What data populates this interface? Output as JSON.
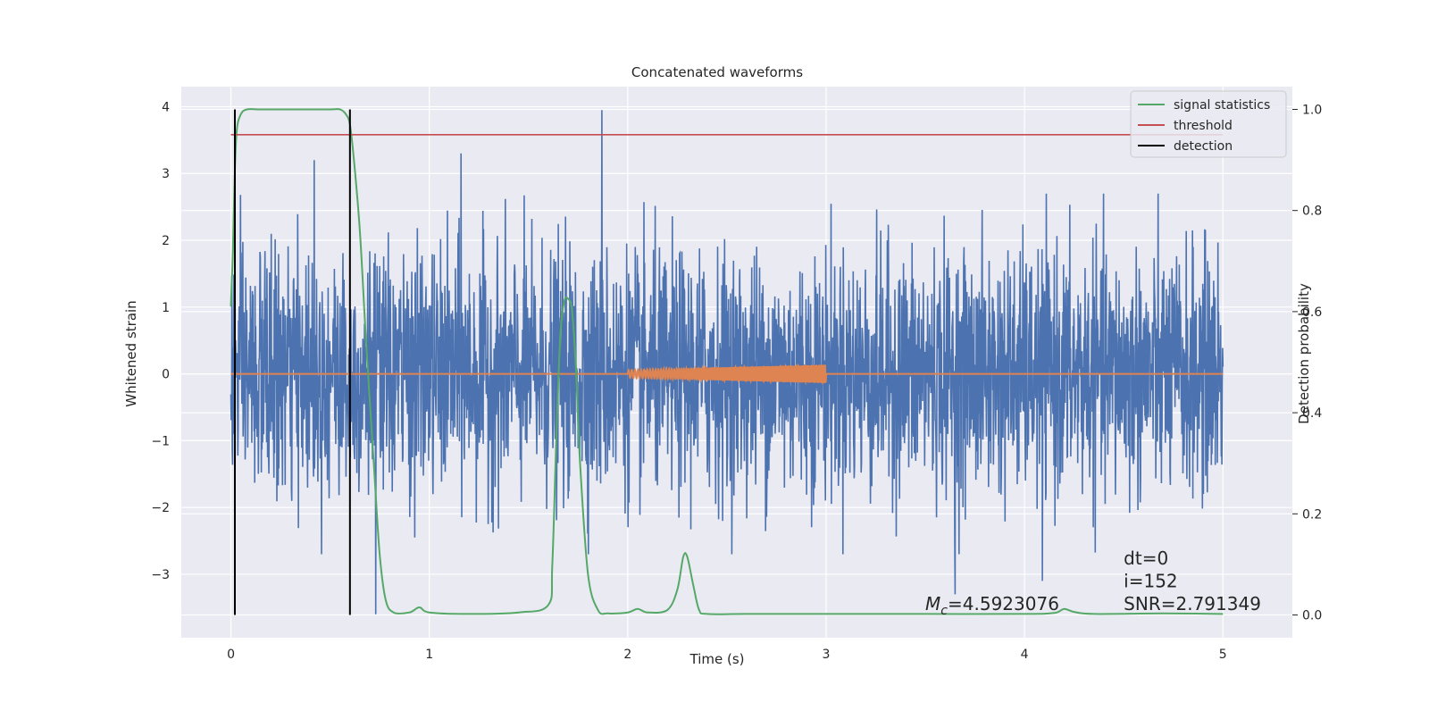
{
  "chart_data": {
    "type": "line",
    "title": "Concatenated waveforms",
    "xlabel": "Time (s)",
    "ylabel": "Whitened strain",
    "y2label": "Detection probability",
    "xlim": [
      -0.25,
      5.35
    ],
    "ylim": [
      -3.95,
      4.3
    ],
    "y2lim": [
      -0.045,
      1.045
    ],
    "xticks": [
      0,
      1,
      2,
      3,
      4,
      5
    ],
    "xtick_labels": [
      "0",
      "1",
      "2",
      "3",
      "4",
      "5"
    ],
    "yticks": [
      4,
      3,
      2,
      1,
      0,
      -1,
      -2,
      -3
    ],
    "ytick_labels": [
      "4",
      "3",
      "2",
      "1",
      "0",
      "−1",
      "−2",
      "−3"
    ],
    "y2ticks": [
      1.0,
      0.8,
      0.6,
      0.4,
      0.2,
      0.0
    ],
    "y2tick_labels": [
      "1.0",
      "0.8",
      "0.6",
      "0.4",
      "0.2",
      "0.0"
    ],
    "grid": true,
    "legend_position": "upper-right",
    "legend": [
      {
        "label": "signal statistics",
        "color": "#55a868"
      },
      {
        "label": "threshold",
        "color": "#c44e52"
      },
      {
        "label": "detection",
        "color": "#000000"
      }
    ],
    "colors": {
      "background": "#eaeaf2",
      "grid": "#ffffff",
      "noise": "#4c72b0",
      "waveform": "#dd8452",
      "signal_statistics": "#55a868",
      "threshold": "#c44e52",
      "detection": "#000000"
    },
    "noise": {
      "x_range": [
        0,
        5
      ],
      "typical_abs_max": 2.4,
      "notable_peaks": [
        {
          "x": 1.87,
          "y": 3.95
        },
        {
          "x": 0.73,
          "y": -3.6
        },
        {
          "x": 4.09,
          "y": -3.1
        },
        {
          "x": 3.65,
          "y": -3.3
        },
        {
          "x": 1.16,
          "y": 3.3
        },
        {
          "x": 0.42,
          "y": 3.2
        }
      ]
    },
    "waveform": {
      "flat": [
        [
          0,
          0
        ],
        [
          5,
          0
        ]
      ],
      "chirp_x_range": [
        2.0,
        3.0
      ],
      "chirp_amplitude_start": 0.06,
      "chirp_amplitude_end": 0.14
    },
    "series": [
      {
        "name": "signal statistics",
        "axis": "y2",
        "x": [
          0,
          0.01,
          0.02,
          0.03,
          0.05,
          0.08,
          0.15,
          0.3,
          0.5,
          0.55,
          0.58,
          0.6,
          0.62,
          0.65,
          0.68,
          0.72,
          0.75,
          0.78,
          0.82,
          0.9,
          0.95,
          1.0,
          1.2,
          1.45,
          1.6,
          1.62,
          1.64,
          1.66,
          1.68,
          1.7,
          1.72,
          1.74,
          1.76,
          1.8,
          1.85,
          1.9,
          2.0,
          2.05,
          2.1,
          2.2,
          2.25,
          2.28,
          2.3,
          2.33,
          2.36,
          2.4,
          2.6,
          3.0,
          3.5,
          4.0,
          4.15,
          4.2,
          4.25,
          4.35,
          4.7,
          5.0
        ],
        "y": [
          0.61,
          0.72,
          0.88,
          0.96,
          0.99,
          1.0,
          1.0,
          1.0,
          1.0,
          1.0,
          0.99,
          0.97,
          0.9,
          0.76,
          0.55,
          0.3,
          0.12,
          0.03,
          0.005,
          0.005,
          0.015,
          0.005,
          0.002,
          0.005,
          0.02,
          0.1,
          0.35,
          0.55,
          0.62,
          0.625,
          0.6,
          0.48,
          0.3,
          0.08,
          0.01,
          0.003,
          0.005,
          0.012,
          0.005,
          0.01,
          0.05,
          0.115,
          0.115,
          0.06,
          0.01,
          0.002,
          0.002,
          0.002,
          0.002,
          0.002,
          0.004,
          0.012,
          0.006,
          0.002,
          0.003,
          0.002
        ]
      },
      {
        "name": "threshold",
        "axis": "y2",
        "x": [
          0,
          5
        ],
        "y": [
          0.95,
          0.95
        ]
      },
      {
        "name": "detection",
        "axis": "y2",
        "vlines": [
          0.02,
          0.6
        ],
        "y_range": [
          0.0,
          1.0
        ]
      }
    ],
    "annotations": [
      {
        "text": "dt=0",
        "x": 4.5,
        "y2": 0.1
      },
      {
        "text": "i=152",
        "x": 4.5,
        "y2": 0.055
      },
      {
        "text": "SNR=2.791349",
        "x": 4.5,
        "y2": 0.01
      },
      {
        "text_main": "M",
        "text_sub": "c",
        "text_rest": "=4.5923076",
        "x": 3.5,
        "y2": 0.01
      }
    ]
  }
}
